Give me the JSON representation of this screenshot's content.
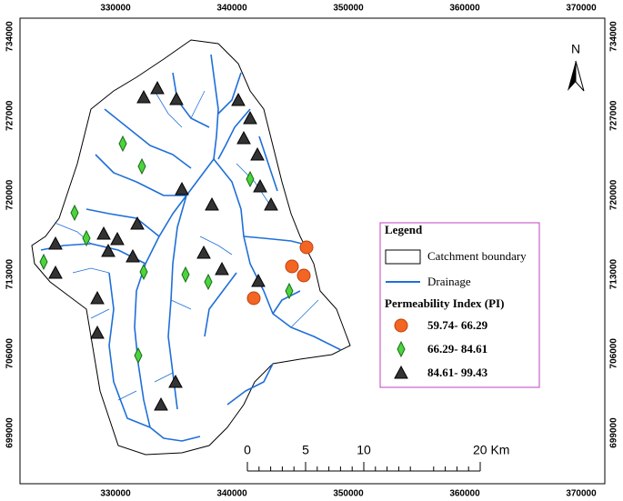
{
  "frame": {
    "x_labels": [
      330000,
      340000,
      350000,
      360000,
      370000
    ],
    "y_labels": [
      734000,
      727000,
      720000,
      713000,
      706000,
      699000
    ]
  },
  "north_arrow": {
    "label": "N"
  },
  "legend": {
    "title": "Legend",
    "boundary": "Catchment boundary",
    "drainage": "Drainage",
    "pi_title": "Permeability Index (PI)",
    "classes": [
      "59.74- 66.29",
      "66.29- 84.61",
      "84.61- 99.43"
    ]
  },
  "scale_bar": {
    "ticks": [
      0,
      5,
      10,
      {
        "value": 20,
        "label": "20 Km"
      }
    ]
  }
}
